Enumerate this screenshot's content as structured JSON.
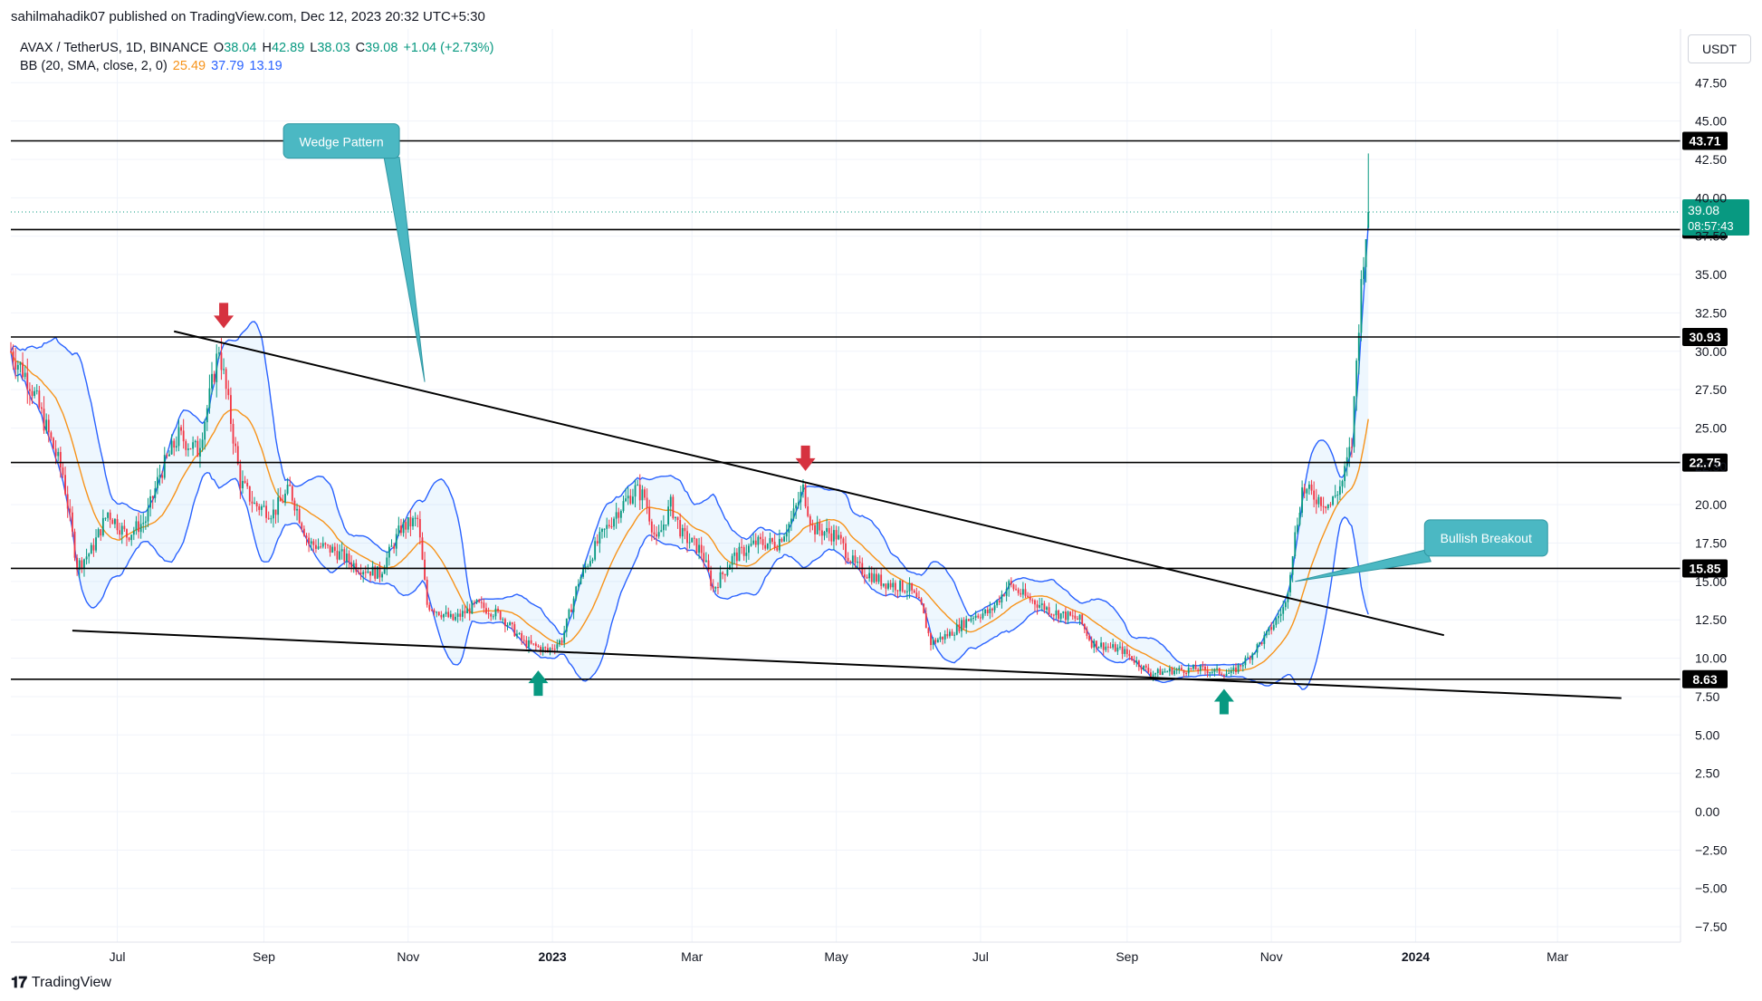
{
  "publisher_line": "sahilmahadik07 published on TradingView.com, Dec 12, 2023 20:32 UTC+5:30",
  "legend": {
    "symbol": "AVAX / TetherUS, 1D, BINANCE",
    "o_label": "O",
    "o_value": "38.04",
    "h_label": "H",
    "h_value": "42.89",
    "l_label": "L",
    "l_value": "38.03",
    "c_label": "C",
    "c_value": "39.08",
    "change": "+1.04 (+2.73%)",
    "bb_label": "BB (20, SMA, close, 2, 0)",
    "bb_basis": "25.49",
    "bb_upper": "37.79",
    "bb_lower": "13.19"
  },
  "currency_button": "USDT",
  "footer_brand": "TradingView",
  "colors": {
    "up": "#089981",
    "down": "#f23645",
    "basis": "#f7931a",
    "band": "#2962ff",
    "band_fill": "#2196f31a",
    "annotation": "#4bb8c3",
    "level_line": "#000000"
  },
  "chart_data": {
    "type": "candlestick",
    "symbol": "AVAX / TetherUS",
    "interval": "1D",
    "exchange": "BINANCE",
    "ylim": [
      -8.5,
      51
    ],
    "y_ticks": [
      -7.5,
      -5,
      -2.5,
      0,
      2.5,
      5,
      7.5,
      10,
      12.5,
      15,
      17.5,
      20,
      22.5,
      25,
      27.5,
      30,
      32.5,
      35,
      37.5,
      40,
      42.5,
      45,
      47.5
    ],
    "y_tick_labels": [
      "−7.50",
      "−5.00",
      "−2.50",
      "0.00",
      "2.50",
      "5.00",
      "7.50",
      "10.00",
      "12.50",
      "15.00",
      "17.50",
      "20.00",
      "22.50",
      "25.00",
      "27.50",
      "30.00",
      "32.50",
      "35.00",
      "37.50",
      "40.00",
      "42.50",
      "45.00",
      "47.50"
    ],
    "x_range": [
      "2022-05-17",
      "2024-04-22"
    ],
    "x_ticks": [
      {
        "date": "2022-07-01",
        "label": "Jul"
      },
      {
        "date": "2022-09-01",
        "label": "Sep"
      },
      {
        "date": "2022-11-01",
        "label": "Nov"
      },
      {
        "date": "2023-01-01",
        "label": "2023"
      },
      {
        "date": "2023-03-01",
        "label": "Mar"
      },
      {
        "date": "2023-05-01",
        "label": "May"
      },
      {
        "date": "2023-07-01",
        "label": "Jul"
      },
      {
        "date": "2023-09-01",
        "label": "Sep"
      },
      {
        "date": "2023-11-01",
        "label": "Nov"
      },
      {
        "date": "2024-01-01",
        "label": "2024"
      },
      {
        "date": "2024-03-01",
        "label": "Mar"
      }
    ],
    "close_anchors": [
      [
        "2022-05-17",
        30.0
      ],
      [
        "2022-05-25",
        28.0
      ],
      [
        "2022-06-01",
        25.0
      ],
      [
        "2022-06-08",
        22.0
      ],
      [
        "2022-06-14",
        16.0
      ],
      [
        "2022-06-20",
        17.0
      ],
      [
        "2022-06-27",
        19.5
      ],
      [
        "2022-07-05",
        18.0
      ],
      [
        "2022-07-13",
        19.0
      ],
      [
        "2022-07-19",
        22.0
      ],
      [
        "2022-07-27",
        24.5
      ],
      [
        "2022-08-04",
        23.5
      ],
      [
        "2022-08-09",
        27.0
      ],
      [
        "2022-08-13",
        30.3
      ],
      [
        "2022-08-18",
        25.5
      ],
      [
        "2022-08-22",
        21.5
      ],
      [
        "2022-08-28",
        20.0
      ],
      [
        "2022-09-05",
        19.5
      ],
      [
        "2022-09-12",
        21.0
      ],
      [
        "2022-09-20",
        17.5
      ],
      [
        "2022-10-01",
        17.0
      ],
      [
        "2022-10-10",
        16.0
      ],
      [
        "2022-10-20",
        15.5
      ],
      [
        "2022-10-29",
        18.5
      ],
      [
        "2022-11-05",
        19.0
      ],
      [
        "2022-11-09",
        13.5
      ],
      [
        "2022-11-20",
        12.5
      ],
      [
        "2022-11-30",
        13.5
      ],
      [
        "2022-12-10",
        12.8
      ],
      [
        "2022-12-20",
        11.0
      ],
      [
        "2022-12-30",
        10.5
      ],
      [
        "2023-01-05",
        11.2
      ],
      [
        "2023-01-12",
        15.0
      ],
      [
        "2023-01-20",
        17.5
      ],
      [
        "2023-01-28",
        19.5
      ],
      [
        "2023-02-05",
        21.0
      ],
      [
        "2023-02-09",
        20.5
      ],
      [
        "2023-02-14",
        17.5
      ],
      [
        "2023-02-20",
        20.0
      ],
      [
        "2023-02-25",
        18.0
      ],
      [
        "2023-03-05",
        17.0
      ],
      [
        "2023-03-10",
        14.5
      ],
      [
        "2023-03-18",
        16.5
      ],
      [
        "2023-03-28",
        17.5
      ],
      [
        "2023-04-06",
        17.5
      ],
      [
        "2023-04-12",
        19.0
      ],
      [
        "2023-04-17",
        21.0
      ],
      [
        "2023-04-21",
        18.5
      ],
      [
        "2023-05-01",
        18.0
      ],
      [
        "2023-05-09",
        16.0
      ],
      [
        "2023-05-20",
        15.0
      ],
      [
        "2023-06-01",
        14.5
      ],
      [
        "2023-06-06",
        13.3
      ],
      [
        "2023-06-10",
        11.0
      ],
      [
        "2023-06-18",
        11.6
      ],
      [
        "2023-06-28",
        12.8
      ],
      [
        "2023-07-05",
        13.0
      ],
      [
        "2023-07-13",
        14.8
      ],
      [
        "2023-07-20",
        14.0
      ],
      [
        "2023-08-01",
        13.0
      ],
      [
        "2023-08-12",
        12.5
      ],
      [
        "2023-08-17",
        11.0
      ],
      [
        "2023-08-30",
        10.5
      ],
      [
        "2023-09-11",
        9.0
      ],
      [
        "2023-09-20",
        9.2
      ],
      [
        "2023-10-01",
        9.3
      ],
      [
        "2023-10-15",
        9.0
      ],
      [
        "2023-10-22",
        10.0
      ],
      [
        "2023-10-30",
        11.5
      ],
      [
        "2023-11-07",
        13.5
      ],
      [
        "2023-11-10",
        17.0
      ],
      [
        "2023-11-14",
        21.0
      ],
      [
        "2023-11-20",
        20.5
      ],
      [
        "2023-11-26",
        20.0
      ],
      [
        "2023-12-01",
        21.5
      ],
      [
        "2023-12-05",
        24.0
      ],
      [
        "2023-12-08",
        32.0
      ],
      [
        "2023-12-10",
        36.5
      ],
      [
        "2023-12-12",
        39.08
      ]
    ],
    "last_candle": {
      "date": "2023-12-12",
      "open": 38.04,
      "high": 42.89,
      "low": 38.03,
      "close": 39.08
    },
    "bollinger": {
      "length": 20,
      "ma_type": "SMA",
      "source": "close",
      "mult": 2,
      "offset": 0,
      "basis": 25.49,
      "upper": 37.79,
      "lower": 13.19
    },
    "horizontal_levels": [
      43.71,
      37.93,
      30.93,
      22.75,
      15.85,
      8.63
    ],
    "level_labels": [
      "43.71",
      "37.93",
      "30.93",
      "22.75",
      "15.85",
      "8.63"
    ],
    "last_price_label": "39.08",
    "countdown_label": "08:57:43",
    "wedge_upper_line": [
      [
        "2022-07-25",
        31.3
      ],
      [
        "2024-01-13",
        11.5
      ]
    ],
    "wedge_lower_line": [
      [
        "2022-06-12",
        11.8
      ],
      [
        "2024-03-28",
        7.4
      ]
    ],
    "sell_arrows": [
      [
        "2022-08-15",
        31.5
      ],
      [
        "2023-04-18",
        22.2
      ]
    ],
    "buy_arrows": [
      [
        "2022-12-26",
        9.2
      ],
      [
        "2023-10-12",
        8.0
      ]
    ],
    "annotations": [
      {
        "text": "Wedge Pattern",
        "anchor": [
          "2022-11-08",
          28.0
        ]
      },
      {
        "text": "Bullish Breakout",
        "anchor": [
          "2023-11-11",
          15.0
        ]
      }
    ]
  }
}
